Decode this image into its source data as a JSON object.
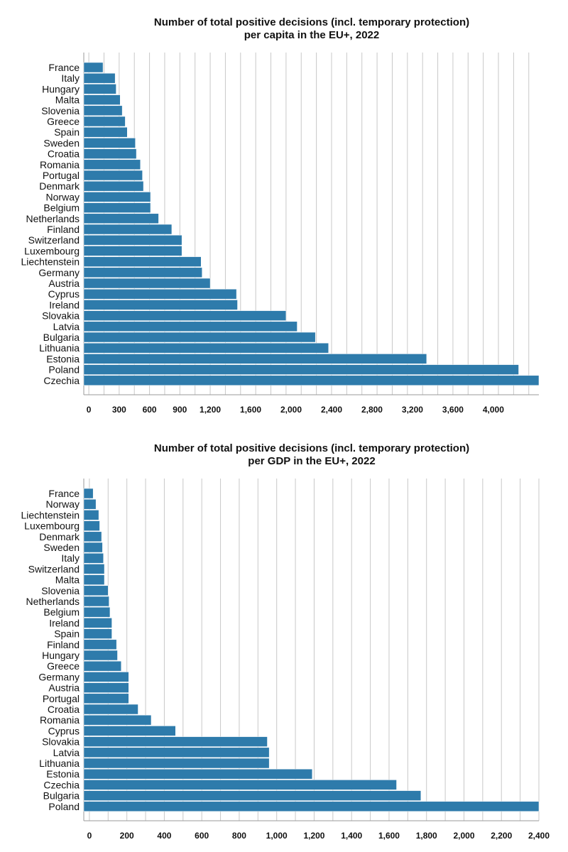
{
  "chart_data": [
    {
      "type": "bar",
      "orientation": "horizontal",
      "title": [
        "Number of total positive decisions (incl. temporary protection)",
        "per capita in the EU+, 2022"
      ],
      "xlabel": "",
      "ylabel": "",
      "xlim": [
        -50,
        4450
      ],
      "gridlines": [
        0,
        150,
        300,
        450,
        600,
        750,
        900,
        1050,
        1200,
        1350,
        1500,
        1650,
        1800,
        1950,
        2100,
        2250,
        2400,
        2550,
        2700,
        2850,
        3000,
        3150,
        3300,
        3450,
        3600,
        3750,
        3900,
        4050,
        4200,
        4350
      ],
      "ticks": [
        {
          "value": 0,
          "label": "0"
        },
        {
          "value": 300,
          "label": "300"
        },
        {
          "value": 600,
          "label": "600"
        },
        {
          "value": 900,
          "label": "900"
        },
        {
          "value": 1200,
          "label": "1,200"
        },
        {
          "value": 1600,
          "label": "1,600"
        },
        {
          "value": 2000,
          "label": "2,000"
        },
        {
          "value": 2400,
          "label": "2,400"
        },
        {
          "value": 2800,
          "label": "2,800"
        },
        {
          "value": 3200,
          "label": "3,200"
        },
        {
          "value": 3600,
          "label": "3,600"
        },
        {
          "value": 4000,
          "label": "4,000"
        }
      ],
      "color": "#2e7bab",
      "categories": [
        "France",
        "Italy",
        "Hungary",
        "Malta",
        "Slovenia",
        "Greece",
        "Spain",
        "Sweden",
        "Croatia",
        "Romania",
        "Portugal",
        "Denmark",
        "Norway",
        "Belgium",
        "Netherlands",
        "Finland",
        "Switzerland",
        "Luxembourg",
        "Liechtenstein",
        "Germany",
        "Austria",
        "Cyprus",
        "Ireland",
        "Slovakia",
        "Latvia",
        "Bulgaria",
        "Lithuania",
        "Estonia",
        "Poland",
        "Czechia"
      ],
      "values": [
        140,
        260,
        270,
        310,
        330,
        360,
        380,
        460,
        470,
        510,
        530,
        540,
        610,
        610,
        690,
        820,
        920,
        920,
        1110,
        1120,
        1200,
        1460,
        1470,
        1950,
        2060,
        2240,
        2370,
        3340,
        4250,
        4450
      ]
    },
    {
      "type": "bar",
      "orientation": "horizontal",
      "title": [
        "Number of total positive decisions (incl. temporary protection)",
        "per GDP in the EU+, 2022"
      ],
      "xlabel": "",
      "ylabel": "",
      "xlim": [
        -30,
        2400
      ],
      "gridlines": [
        0,
        100,
        200,
        300,
        400,
        500,
        600,
        700,
        800,
        900,
        1000,
        1100,
        1200,
        1300,
        1400,
        1500,
        1600,
        1700,
        1800,
        1900,
        2000,
        2100,
        2200,
        2300,
        2400
      ],
      "ticks": [
        {
          "value": 0,
          "label": "0"
        },
        {
          "value": 200,
          "label": "200"
        },
        {
          "value": 400,
          "label": "400"
        },
        {
          "value": 600,
          "label": "600"
        },
        {
          "value": 800,
          "label": "800"
        },
        {
          "value": 1000,
          "label": "1,000"
        },
        {
          "value": 1200,
          "label": "1,200"
        },
        {
          "value": 1400,
          "label": "1,400"
        },
        {
          "value": 1600,
          "label": "1,600"
        },
        {
          "value": 1800,
          "label": "1,800"
        },
        {
          "value": 2000,
          "label": "2,000"
        },
        {
          "value": 2200,
          "label": "2,200"
        },
        {
          "value": 2400,
          "label": "2,400"
        }
      ],
      "color": "#2e7bab",
      "categories": [
        "France",
        "Norway",
        "Liechtenstein",
        "Luxembourg",
        "Denmark",
        "Sweden",
        "Italy",
        "Switzerland",
        "Malta",
        "Slovenia",
        "Netherlands",
        "Belgium",
        "Ireland",
        "Spain",
        "Finland",
        "Hungary",
        "Greece",
        "Germany",
        "Austria",
        "Portugal",
        "Croatia",
        "Romania",
        "Cyprus",
        "Slovakia",
        "Latvia",
        "Lithuania",
        "Estonia",
        "Czechia",
        "Bulgaria",
        "Poland"
      ],
      "values": [
        20,
        35,
        50,
        55,
        65,
        70,
        75,
        80,
        80,
        100,
        105,
        110,
        120,
        120,
        145,
        150,
        170,
        210,
        210,
        210,
        260,
        330,
        460,
        950,
        960,
        960,
        1190,
        1640,
        1770,
        2400
      ]
    }
  ]
}
